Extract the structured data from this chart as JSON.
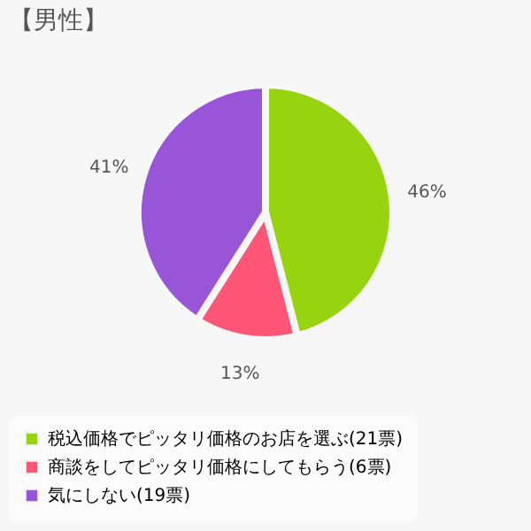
{
  "chart_data": {
    "type": "pie",
    "title": "【男性】",
    "categories": [
      "税込価格でピッタリ価格のお店を選ぶ(21票)",
      "商談をしてピッタリ価格にしてもらう(6票)",
      "気にしない(19票)"
    ],
    "values": [
      46,
      13,
      41
    ],
    "colors": [
      "#97d30f",
      "#ff5577",
      "#9955d8"
    ],
    "value_labels": [
      "46%",
      "13%",
      "41%"
    ],
    "legend": "bottom"
  }
}
